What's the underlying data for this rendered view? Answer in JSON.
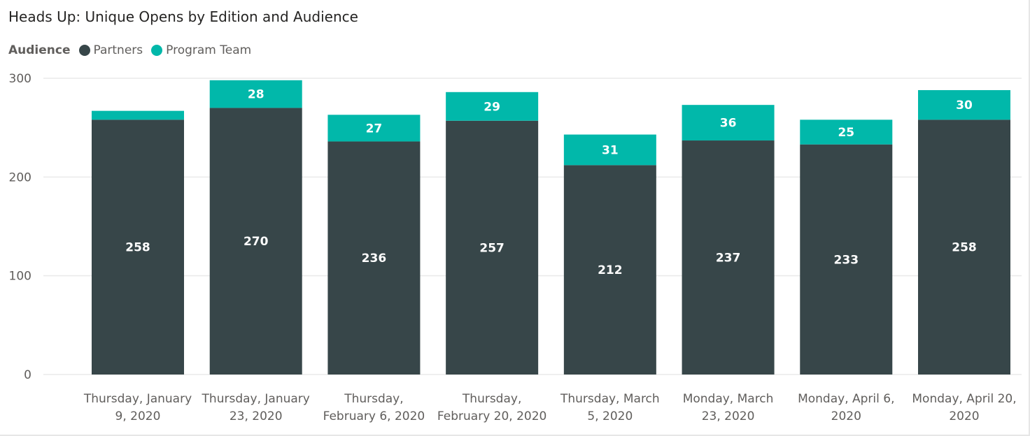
{
  "chart_data": {
    "type": "bar",
    "stacked": true,
    "title": "Heads Up: Unique Opens by Edition and Audience",
    "legend": {
      "title": "Audience",
      "placement": "top-left"
    },
    "xlabel": "",
    "ylabel": "",
    "categories": [
      [
        "Thursday, January",
        "9, 2020"
      ],
      [
        "Thursday, January",
        "23, 2020"
      ],
      [
        "Thursday,",
        "February 6, 2020"
      ],
      [
        "Thursday,",
        "February 20, 2020"
      ],
      [
        "Thursday, March",
        "5, 2020"
      ],
      [
        "Monday, March",
        "23, 2020"
      ],
      [
        "Monday, April 6,",
        "2020"
      ],
      [
        "Monday, April 20,",
        "2020"
      ]
    ],
    "series": [
      {
        "name": "Partners",
        "color": "#374649",
        "values": [
          258,
          270,
          236,
          257,
          212,
          237,
          233,
          258
        ],
        "labels": [
          "258",
          "270",
          "236",
          "257",
          "212",
          "237",
          "233",
          "258"
        ]
      },
      {
        "name": "Program Team",
        "color": "#01b8aa",
        "values": [
          9,
          28,
          27,
          29,
          31,
          36,
          25,
          30
        ],
        "labels": [
          "",
          "28",
          "27",
          "29",
          "31",
          "36",
          "25",
          "30"
        ]
      }
    ],
    "ylim": [
      0,
      300
    ],
    "yticks": [
      0,
      100,
      200,
      300
    ],
    "grid": true
  }
}
